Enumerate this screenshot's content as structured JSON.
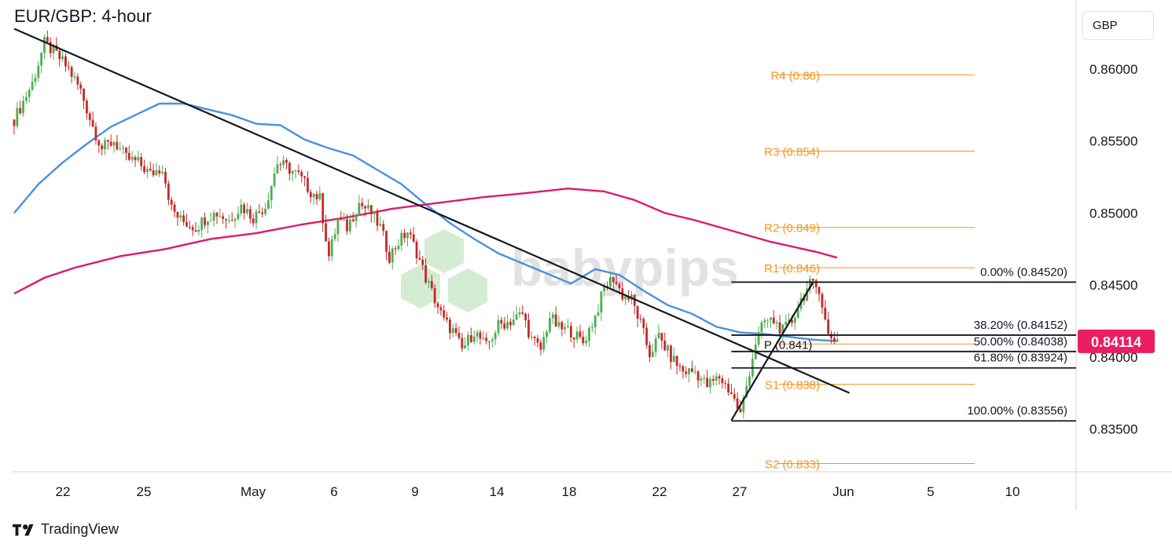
{
  "header": {
    "title": "EUR/GBP: 4-hour"
  },
  "toolbar": {
    "currency": "GBP"
  },
  "branding": {
    "name": "TradingView",
    "watermark": "babypips"
  },
  "colors": {
    "ma_fast": "#4a90e2",
    "ma_slow": "#e0186c",
    "pivot": "#f7931e",
    "up_candle": "#4caf50",
    "down_candle": "#c62828",
    "price_tag": "#e91e63"
  },
  "chart_data": {
    "type": "candlestick",
    "title": "EUR/GBP: 4-hour",
    "ylim": [
      0.8317,
      0.8648
    ],
    "x_ticks": [
      "22",
      "25",
      "May",
      "6",
      "9",
      "14",
      "18",
      "22",
      "27",
      "Jun",
      "5",
      "10"
    ],
    "y_ticks": [
      "0.86000",
      "0.85500",
      "0.85000",
      "0.84500",
      "0.84000",
      "0.83500"
    ],
    "last_price": "0.84114",
    "pivot_levels": [
      {
        "label": "R4 (0.86)",
        "value": 0.8596
      },
      {
        "label": "R3 (0.854)",
        "value": 0.8543
      },
      {
        "label": "R2 (0.849)",
        "value": 0.849
      },
      {
        "label": "R1 (0.846)",
        "value": 0.8462
      },
      {
        "label": "P (0.841)",
        "value": 0.8409
      },
      {
        "label": "S1 (0.838)",
        "value": 0.8381
      },
      {
        "label": "S2 (0.833)",
        "value": 0.8326
      }
    ],
    "fib_levels": [
      {
        "label": "0.00% (0.84520)",
        "value": 0.8452
      },
      {
        "label": "38.20% (0.84152)",
        "value": 0.84152
      },
      {
        "label": "50.00% (0.84038)",
        "value": 0.84038
      },
      {
        "label": "61.80% (0.83924)",
        "value": 0.83924
      },
      {
        "label": "100.00% (0.83556)",
        "value": 0.83556
      }
    ],
    "trendlines": [
      {
        "name": "descending",
        "from": [
          0,
          0.8628
        ],
        "to": [
          276,
          0.8375
        ]
      },
      {
        "name": "ascending",
        "from": [
          237,
          0.8356
        ],
        "to": [
          264,
          0.8452
        ]
      }
    ],
    "series": [
      {
        "name": "MA fast",
        "points": [
          [
            0,
            0.85
          ],
          [
            8,
            0.852
          ],
          [
            16,
            0.8535
          ],
          [
            24,
            0.8548
          ],
          [
            32,
            0.856
          ],
          [
            40,
            0.8568
          ],
          [
            48,
            0.8576
          ],
          [
            56,
            0.8576
          ],
          [
            64,
            0.8572
          ],
          [
            72,
            0.8568
          ],
          [
            80,
            0.8562
          ],
          [
            88,
            0.8561
          ],
          [
            96,
            0.8551
          ],
          [
            104,
            0.8545
          ],
          [
            112,
            0.854
          ],
          [
            120,
            0.853
          ],
          [
            128,
            0.852
          ],
          [
            136,
            0.8506
          ],
          [
            144,
            0.8493
          ],
          [
            152,
            0.8482
          ],
          [
            160,
            0.8472
          ],
          [
            168,
            0.8465
          ],
          [
            176,
            0.8458
          ],
          [
            184,
            0.8451
          ],
          [
            192,
            0.8461
          ],
          [
            200,
            0.8457
          ],
          [
            208,
            0.8446
          ],
          [
            216,
            0.8436
          ],
          [
            224,
            0.843
          ],
          [
            232,
            0.8421
          ],
          [
            240,
            0.8417
          ],
          [
            248,
            0.8416
          ],
          [
            256,
            0.8414
          ],
          [
            264,
            0.8412
          ],
          [
            272,
            0.8411
          ]
        ]
      },
      {
        "name": "MA slow",
        "points": [
          [
            0,
            0.8444
          ],
          [
            10,
            0.8455
          ],
          [
            20,
            0.8462
          ],
          [
            35,
            0.847
          ],
          [
            50,
            0.8475
          ],
          [
            65,
            0.8482
          ],
          [
            80,
            0.8486
          ],
          [
            95,
            0.8492
          ],
          [
            110,
            0.8497
          ],
          [
            125,
            0.8503
          ],
          [
            140,
            0.8507
          ],
          [
            155,
            0.8511
          ],
          [
            170,
            0.8514
          ],
          [
            183,
            0.8517
          ],
          [
            195,
            0.8515
          ],
          [
            205,
            0.8509
          ],
          [
            215,
            0.85
          ],
          [
            225,
            0.8495
          ],
          [
            235,
            0.8489
          ],
          [
            250,
            0.848
          ],
          [
            265,
            0.8473
          ],
          [
            272,
            0.8469
          ]
        ]
      }
    ],
    "path": [
      [
        0,
        0.8565
      ],
      [
        6,
        0.859
      ],
      [
        10,
        0.8618
      ],
      [
        14,
        0.861
      ],
      [
        18,
        0.86
      ],
      [
        22,
        0.8585
      ],
      [
        26,
        0.856
      ],
      [
        29,
        0.8545
      ],
      [
        33,
        0.855
      ],
      [
        37,
        0.8538
      ],
      [
        41,
        0.8535
      ],
      [
        45,
        0.8527
      ],
      [
        49,
        0.8532
      ],
      [
        52,
        0.8503
      ],
      [
        55,
        0.8495
      ],
      [
        60,
        0.849
      ],
      [
        64,
        0.8498
      ],
      [
        67,
        0.85
      ],
      [
        71,
        0.8495
      ],
      [
        75,
        0.8505
      ],
      [
        79,
        0.8497
      ],
      [
        83,
        0.8505
      ],
      [
        87,
        0.8535
      ],
      [
        90,
        0.8532
      ],
      [
        94,
        0.8526
      ],
      [
        98,
        0.8515
      ],
      [
        101,
        0.851
      ],
      [
        104,
        0.847
      ],
      [
        107,
        0.8495
      ],
      [
        110,
        0.849
      ],
      [
        114,
        0.8507
      ],
      [
        118,
        0.85
      ],
      [
        121,
        0.849
      ],
      [
        124,
        0.847
      ],
      [
        127,
        0.848
      ],
      [
        130,
        0.8487
      ],
      [
        133,
        0.8473
      ],
      [
        136,
        0.8455
      ],
      [
        139,
        0.844
      ],
      [
        142,
        0.8425
      ],
      [
        145,
        0.8418
      ],
      [
        148,
        0.8405
      ],
      [
        152,
        0.8418
      ],
      [
        156,
        0.8407
      ],
      [
        160,
        0.8422
      ],
      [
        164,
        0.8425
      ],
      [
        168,
        0.843
      ],
      [
        171,
        0.8412
      ],
      [
        174,
        0.8405
      ],
      [
        177,
        0.8428
      ],
      [
        180,
        0.842
      ],
      [
        184,
        0.8418
      ],
      [
        188,
        0.841
      ],
      [
        192,
        0.8428
      ],
      [
        195,
        0.8448
      ],
      [
        198,
        0.8455
      ],
      [
        201,
        0.8443
      ],
      [
        204,
        0.844
      ],
      [
        207,
        0.8423
      ],
      [
        210,
        0.8402
      ],
      [
        213,
        0.8414
      ],
      [
        217,
        0.84
      ],
      [
        221,
        0.839
      ],
      [
        225,
        0.839
      ],
      [
        229,
        0.838
      ],
      [
        233,
        0.8386
      ],
      [
        237,
        0.8375
      ],
      [
        240,
        0.836
      ],
      [
        243,
        0.839
      ],
      [
        245,
        0.841
      ],
      [
        248,
        0.8425
      ],
      [
        251,
        0.8425
      ],
      [
        254,
        0.8418
      ],
      [
        257,
        0.8425
      ],
      [
        260,
        0.844
      ],
      [
        263,
        0.845
      ],
      [
        266,
        0.8448
      ],
      [
        268,
        0.8425
      ],
      [
        269,
        0.8415
      ],
      [
        272,
        0.8412
      ]
    ]
  }
}
